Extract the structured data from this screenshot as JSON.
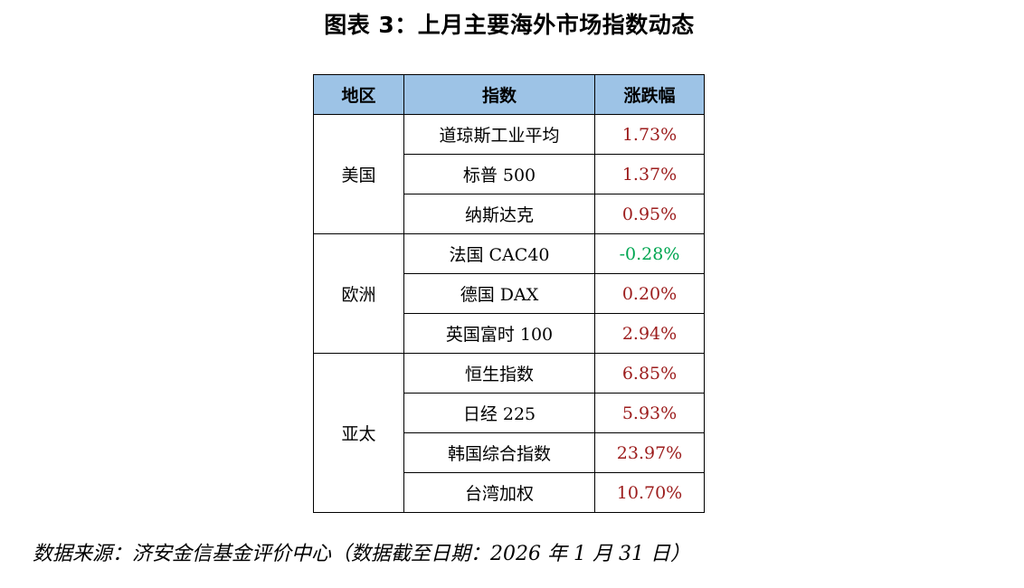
{
  "title": "图表 3：上月主要海外市场指数动态",
  "table": {
    "headers": [
      "地区",
      "指数",
      "涨跌幅"
    ],
    "groups": [
      {
        "region": "美国",
        "rows": [
          {
            "index": "道琼斯工业平均",
            "change": "1.73%"
          },
          {
            "index": "标普 500",
            "change": "1.37%"
          },
          {
            "index": "纳斯达克",
            "change": "0.95%"
          }
        ]
      },
      {
        "region": "欧洲",
        "rows": [
          {
            "index": "法国 CAC40",
            "change": "-0.28%"
          },
          {
            "index": "德国 DAX",
            "change": "0.20%"
          },
          {
            "index": "英国富时 100",
            "change": "2.94%"
          }
        ]
      },
      {
        "region": "亚太",
        "rows": [
          {
            "index": "恒生指数",
            "change": "6.85%"
          },
          {
            "index": "日经 225",
            "change": "5.93%"
          },
          {
            "index": "韩国综合指数",
            "change": "23.97%"
          },
          {
            "index": "台湾加权",
            "change": "10.70%"
          }
        ]
      }
    ]
  },
  "colors": {
    "header_bg": "#9dc3e6",
    "positive": "#9c1c1c",
    "negative": "#00a651"
  },
  "source": "数据来源：济安金信基金评价中心（数据截至日期：2026 年 1 月 31 日）"
}
